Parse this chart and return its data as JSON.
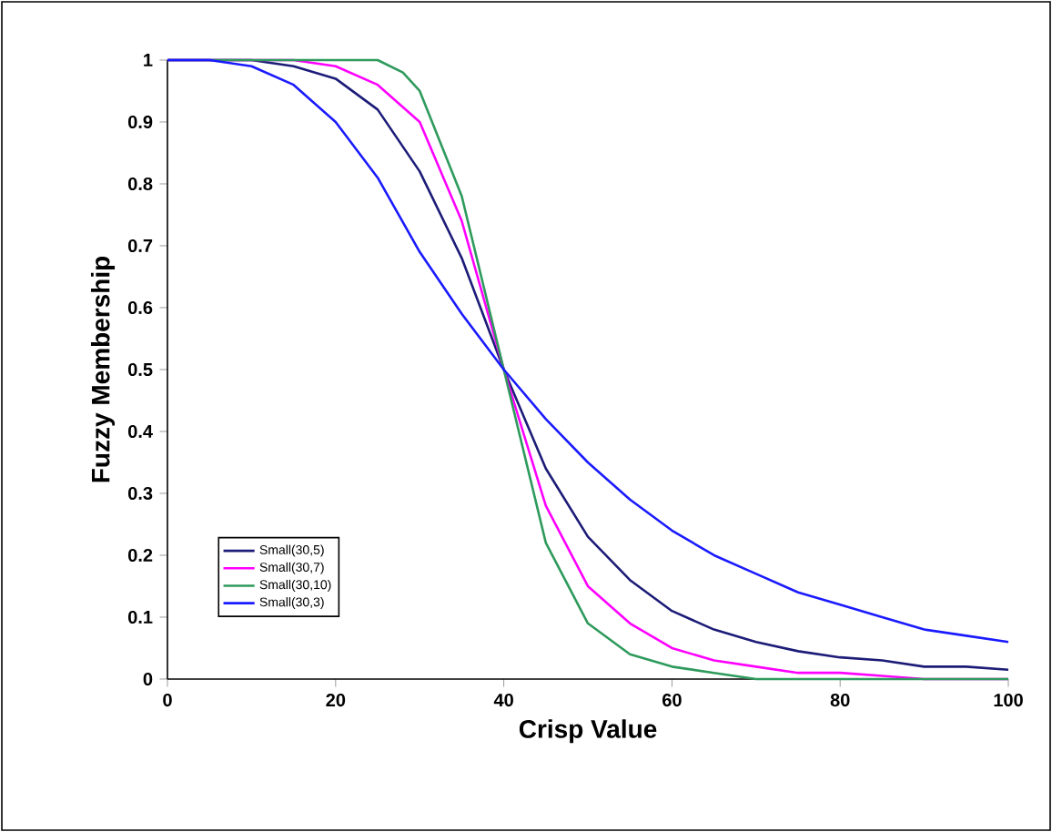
{
  "chart_data": {
    "type": "line",
    "xlabel": "Crisp Value",
    "ylabel": "Fuzzy Membership",
    "xlim": [
      0,
      100
    ],
    "ylim": [
      0,
      1
    ],
    "xticks": [
      0,
      20,
      40,
      60,
      80,
      100
    ],
    "yticks": [
      {
        "value": 0,
        "label": "0"
      },
      0.1,
      0.2,
      0.3,
      0.4,
      0.5,
      0.6,
      0.7,
      0.8,
      0.9,
      {
        "value": 1,
        "label": "1"
      }
    ],
    "legend": "bottom left",
    "marker": "none",
    "line_style": "solid",
    "grid": false,
    "series": [
      {
        "name": "Small(30,5)",
        "color": "#1c1c78",
        "x": [
          0,
          10,
          15,
          20,
          25,
          30,
          35,
          40,
          45,
          50,
          55,
          60,
          65,
          70,
          75,
          80,
          85,
          90,
          95,
          100
        ],
        "values": [
          1,
          1,
          0.99,
          0.97,
          0.92,
          0.82,
          0.68,
          0.5,
          0.34,
          0.23,
          0.16,
          0.11,
          0.08,
          0.06,
          0.045,
          0.035,
          0.03,
          0.02,
          0.02,
          0.015
        ]
      },
      {
        "name": "Small(30,7)",
        "color": "#ff00ff",
        "x": [
          0,
          15,
          20,
          25,
          30,
          35,
          40,
          45,
          50,
          55,
          60,
          65,
          70,
          75,
          80,
          85,
          90,
          100
        ],
        "values": [
          1,
          1,
          0.99,
          0.96,
          0.9,
          0.74,
          0.5,
          0.28,
          0.15,
          0.09,
          0.05,
          0.03,
          0.02,
          0.01,
          0.01,
          0.005,
          0,
          0
        ]
      },
      {
        "name": "Small(30,10)",
        "color": "#2e9a5c",
        "x": [
          0,
          20,
          25,
          28,
          30,
          35,
          40,
          45,
          50,
          55,
          60,
          65,
          70,
          100
        ],
        "values": [
          1,
          1,
          1,
          0.98,
          0.95,
          0.78,
          0.5,
          0.22,
          0.09,
          0.04,
          0.02,
          0.01,
          0,
          0
        ]
      },
      {
        "name": "Small(30,3)",
        "color": "#1a1aff",
        "x": [
          0,
          5,
          10,
          15,
          20,
          25,
          30,
          35,
          40,
          45,
          50,
          55,
          60,
          65,
          70,
          75,
          80,
          85,
          90,
          95,
          100
        ],
        "values": [
          1,
          1,
          0.99,
          0.96,
          0.9,
          0.81,
          0.69,
          0.59,
          0.5,
          0.42,
          0.35,
          0.29,
          0.24,
          0.2,
          0.17,
          0.14,
          0.12,
          0.1,
          0.08,
          0.07,
          0.06
        ]
      }
    ]
  }
}
